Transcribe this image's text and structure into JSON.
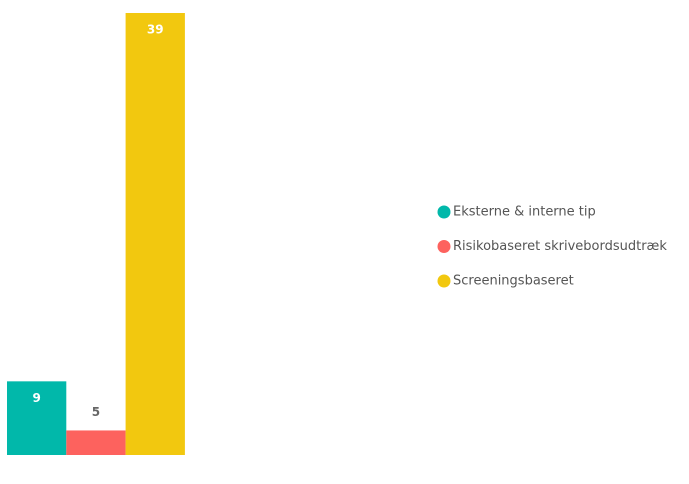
{
  "chart_data": {
    "type": "bar",
    "series": [
      {
        "name": "Eksterne & interne tip",
        "color": "#01B8AA",
        "values": [
          9
        ]
      },
      {
        "name": "Risikobaseret skrivebordsudtræk",
        "color": "#FD625E",
        "values": [
          5
        ]
      },
      {
        "name": "Screeningsbaseret",
        "color": "#F2C80F",
        "values": [
          39
        ]
      }
    ],
    "ylim": [
      3,
      39
    ],
    "legend": "right"
  }
}
